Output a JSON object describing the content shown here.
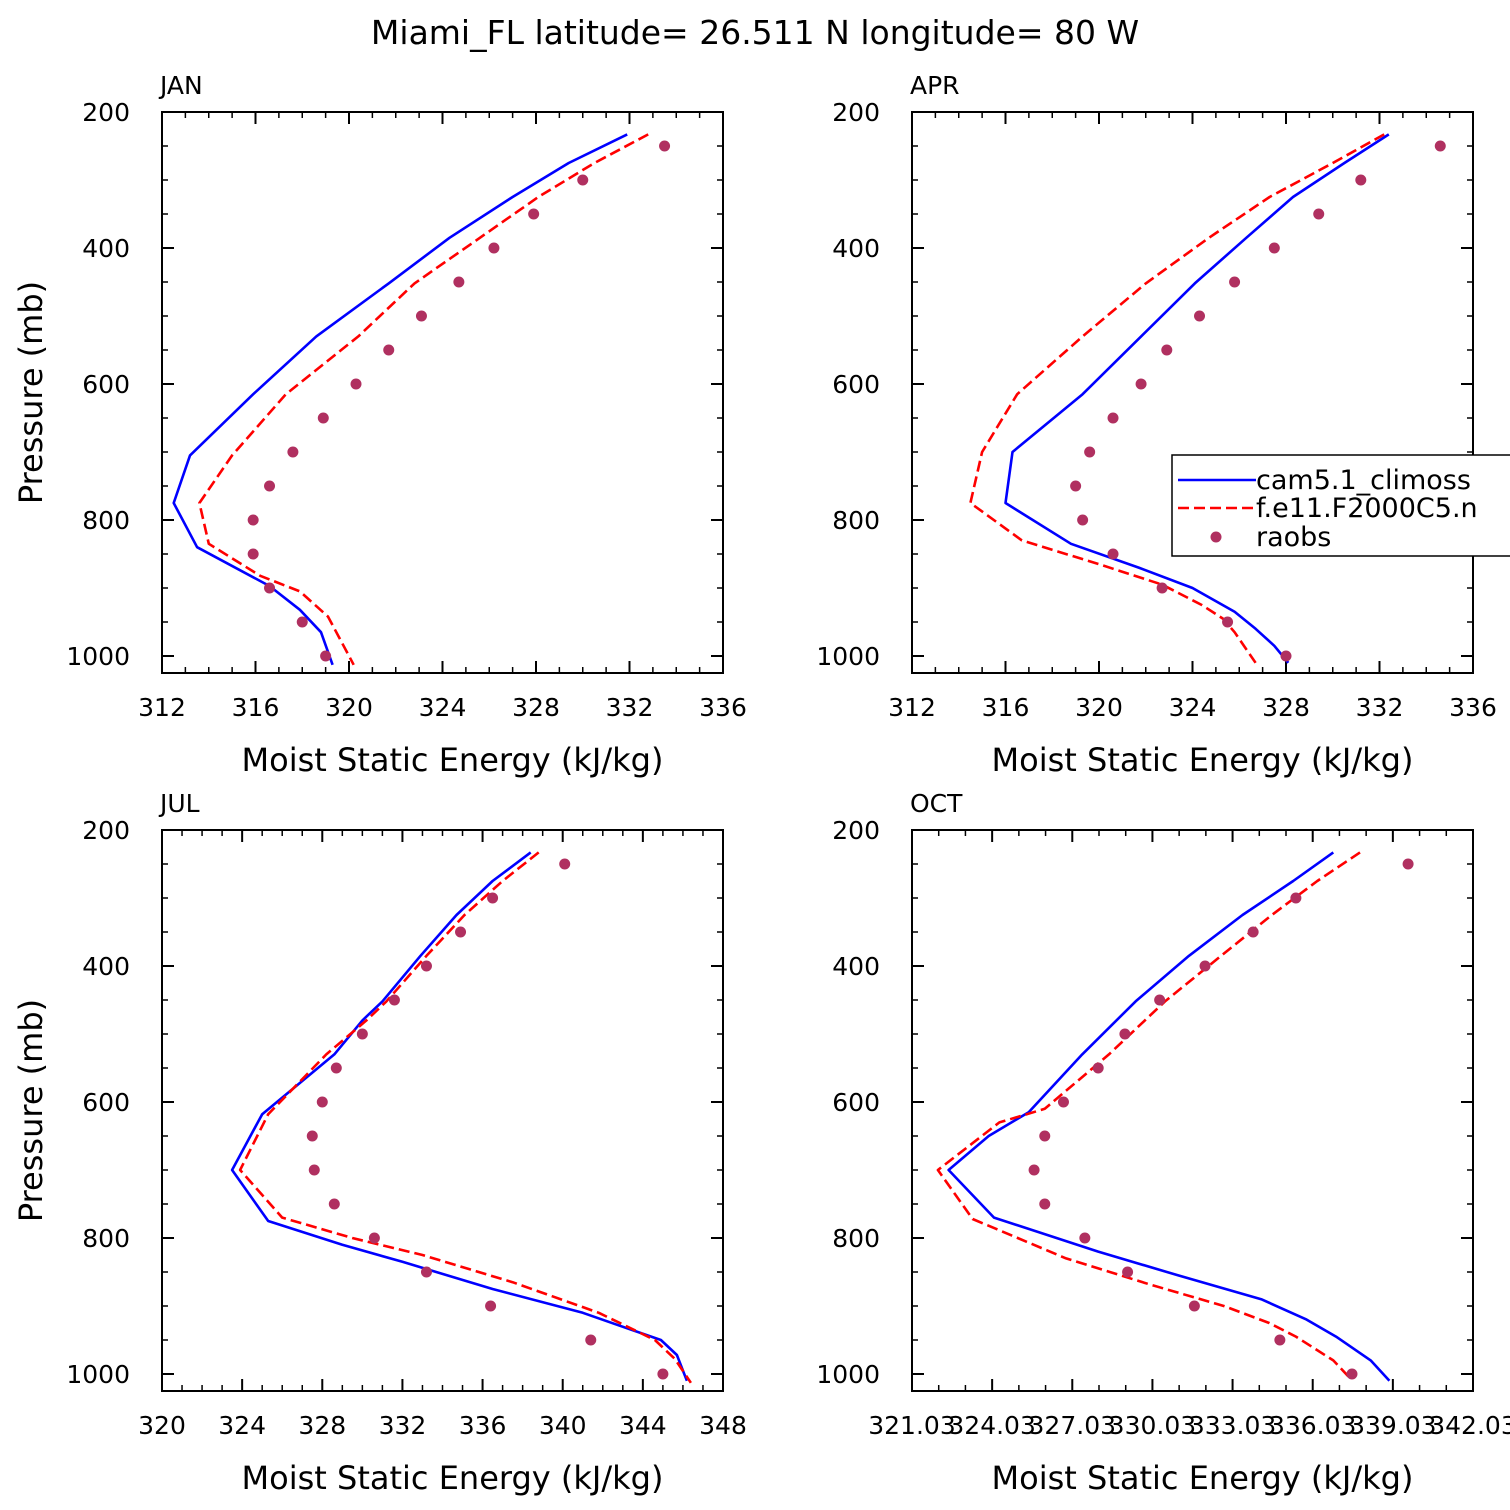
{
  "figure": {
    "title": "Miami_FL  latitude= 26.511 N longitude= 80 W"
  },
  "colors": {
    "model1": "#0000ff",
    "model2": "#ff0000",
    "obs": "#b03060"
  },
  "legend": {
    "entries": [
      "cam5.1_climoss",
      "f.e11.F2000C5.n",
      "raobs"
    ]
  },
  "chart_data": [
    {
      "type": "line",
      "panel": "JAN",
      "xlabel": "Moist Static Energy (kJ/kg)",
      "ylabel": "Pressure (mb)",
      "xlim": [
        312,
        336
      ],
      "ylim": [
        1025,
        200
      ],
      "xticks": [
        "312",
        "316",
        "320",
        "324",
        "328",
        "332",
        "336"
      ],
      "yticks": [
        "200",
        "400",
        "600",
        "800",
        "1000"
      ],
      "series": [
        {
          "name": "cam5.1_climoss",
          "style": "solid",
          "x": [
            331.9,
            329.4,
            327.0,
            324.3,
            321.7,
            318.6,
            315.9,
            313.2,
            312.5,
            313.5,
            316.6,
            317.9,
            318.8,
            319.3
          ],
          "y": [
            233,
            275,
            325,
            385,
            452,
            530,
            615,
            705,
            775,
            840,
            897,
            932,
            965,
            1013
          ]
        },
        {
          "name": "f.e11.F2000C5.n",
          "style": "dashed",
          "x": [
            332.8,
            330.5,
            328.1,
            325.6,
            322.8,
            320.4,
            317.3,
            315.0,
            313.6,
            314.0,
            316.2,
            317.9,
            319.1,
            320.2
          ],
          "y": [
            233,
            275,
            325,
            385,
            452,
            530,
            615,
            705,
            775,
            835,
            882,
            905,
            942,
            1013
          ]
        },
        {
          "name": "raobs",
          "style": "points",
          "x": [
            333.5,
            330.0,
            327.9,
            326.2,
            324.7,
            323.1,
            321.7,
            320.3,
            318.9,
            317.6,
            316.6,
            315.9,
            315.9,
            316.6,
            318.0,
            319.0
          ],
          "y": [
            250,
            300,
            350,
            400,
            450,
            500,
            550,
            600,
            650,
            700,
            750,
            800,
            850,
            900,
            950,
            1000
          ]
        }
      ]
    },
    {
      "type": "line",
      "panel": "APR",
      "xlabel": "Moist Static Energy (kJ/kg)",
      "ylabel": "",
      "xlim": [
        312,
        336
      ],
      "ylim": [
        1025,
        200
      ],
      "xticks": [
        "312",
        "316",
        "320",
        "324",
        "328",
        "332",
        "336"
      ],
      "yticks": [
        "200",
        "400",
        "600",
        "800",
        "1000"
      ],
      "series": [
        {
          "name": "cam5.1_climoss",
          "style": "solid",
          "x": [
            332.4,
            330.5,
            328.3,
            326.3,
            324.1,
            321.8,
            319.3,
            316.3,
            316.0,
            318.8,
            321.7,
            324.0,
            325.8,
            326.7,
            327.5,
            328.1
          ],
          "y": [
            233,
            275,
            325,
            385,
            452,
            530,
            615,
            700,
            775,
            835,
            870,
            900,
            935,
            960,
            985,
            1010
          ]
        },
        {
          "name": "f.e11.F2000C5.n",
          "style": "dashed",
          "x": [
            332.2,
            330.0,
            327.3,
            324.7,
            322.0,
            319.3,
            316.5,
            315.0,
            314.5,
            316.7,
            320.0,
            322.7,
            324.4,
            325.3,
            325.8,
            326.7
          ],
          "y": [
            233,
            275,
            325,
            385,
            452,
            530,
            615,
            700,
            775,
            830,
            865,
            895,
            925,
            945,
            965,
            1010
          ]
        },
        {
          "name": "raobs",
          "style": "points",
          "x": [
            334.6,
            331.2,
            329.4,
            327.5,
            325.8,
            324.3,
            322.9,
            321.8,
            320.6,
            319.6,
            319.0,
            319.3,
            320.6,
            322.7,
            325.5,
            328.0
          ],
          "y": [
            250,
            300,
            350,
            400,
            450,
            500,
            550,
            600,
            650,
            700,
            750,
            800,
            850,
            900,
            950,
            1000
          ]
        }
      ]
    },
    {
      "type": "line",
      "panel": "JUL",
      "xlabel": "Moist Static Energy (kJ/kg)",
      "ylabel": "Pressure (mb)",
      "xlim": [
        320,
        348
      ],
      "ylim": [
        1025,
        200
      ],
      "xticks": [
        "320",
        "324",
        "328",
        "332",
        "336",
        "340",
        "344",
        "348"
      ],
      "yticks": [
        "200",
        "400",
        "600",
        "800",
        "1000"
      ],
      "series": [
        {
          "name": "cam5.1_climoss",
          "style": "solid",
          "x": [
            338.4,
            336.5,
            334.7,
            332.9,
            331.0,
            330.0,
            328.6,
            325.0,
            323.5,
            325.3,
            329.0,
            332.0,
            336.5,
            341.0,
            344.9,
            345.7,
            346.2
          ],
          "y": [
            233,
            275,
            325,
            385,
            452,
            480,
            530,
            618,
            700,
            775,
            810,
            835,
            875,
            910,
            950,
            972,
            1010
          ]
        },
        {
          "name": "f.e11.F2000C5.n",
          "style": "dashed",
          "x": [
            338.8,
            337.0,
            335.1,
            333.2,
            331.2,
            330.2,
            328.2,
            325.3,
            323.9,
            326.0,
            329.5,
            333.0,
            337.5,
            341.8,
            344.6,
            345.6,
            346.4
          ],
          "y": [
            233,
            275,
            325,
            385,
            452,
            480,
            530,
            618,
            700,
            770,
            800,
            825,
            865,
            910,
            950,
            978,
            1013
          ]
        },
        {
          "name": "raobs",
          "style": "points",
          "x": [
            340.1,
            336.5,
            334.9,
            333.2,
            331.6,
            330.0,
            328.7,
            328.0,
            327.5,
            327.6,
            328.6,
            330.6,
            333.2,
            336.4,
            341.4,
            345.0
          ],
          "y": [
            250,
            300,
            350,
            400,
            450,
            500,
            550,
            600,
            650,
            700,
            750,
            800,
            850,
            900,
            950,
            1000
          ]
        }
      ]
    },
    {
      "type": "line",
      "panel": "OCT",
      "xlabel": "Moist Static Energy (kJ/kg)",
      "ylabel": "",
      "xlim": [
        321.03,
        342.03
      ],
      "ylim": [
        1025,
        200
      ],
      "xticks": [
        "321.03",
        "324.03",
        "327.03",
        "330.03",
        "333.03",
        "336.03",
        "339.03",
        "342.03"
      ],
      "yticks": [
        "200",
        "400",
        "600",
        "800",
        "1000"
      ],
      "series": [
        {
          "name": "cam5.1_climoss",
          "style": "solid",
          "x": [
            336.8,
            335.3,
            333.4,
            331.4,
            329.4,
            327.4,
            325.4,
            323.9,
            322.4,
            324.1,
            328.0,
            331.0,
            334.1,
            335.8,
            336.9,
            338.2,
            338.9
          ],
          "y": [
            233,
            275,
            325,
            385,
            452,
            530,
            615,
            650,
            700,
            770,
            820,
            855,
            890,
            920,
            945,
            980,
            1010
          ]
        },
        {
          "name": "f.e11.F2000C5.n",
          "style": "dashed",
          "x": [
            337.8,
            336.2,
            334.5,
            332.6,
            330.5,
            328.4,
            326.0,
            324.3,
            322.0,
            323.3,
            326.8,
            329.9,
            332.7,
            334.4,
            335.4,
            336.8,
            337.4
          ],
          "y": [
            233,
            275,
            325,
            385,
            452,
            530,
            610,
            630,
            700,
            772,
            830,
            868,
            900,
            925,
            945,
            980,
            1005
          ]
        },
        {
          "name": "raobs",
          "style": "points",
          "x": [
            339.6,
            335.4,
            333.8,
            332.0,
            330.3,
            329.0,
            328.0,
            326.7,
            326.0,
            325.6,
            326.0,
            327.5,
            329.1,
            331.6,
            334.8,
            337.5
          ],
          "y": [
            250,
            300,
            350,
            400,
            450,
            500,
            550,
            600,
            650,
            700,
            750,
            800,
            850,
            900,
            950,
            1000
          ]
        }
      ]
    }
  ]
}
